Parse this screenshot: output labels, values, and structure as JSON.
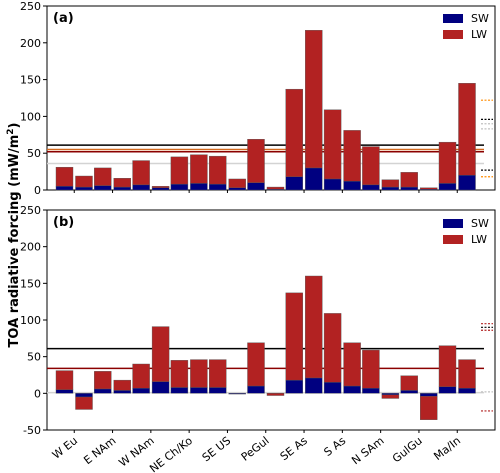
{
  "figure": {
    "ylabel": "TOA radiative forcing (mW/m²)",
    "ylabel_base": "TOA radiative forcing (mW/m",
    "ylabel_sup": "2",
    "ylabel_end": ")"
  },
  "chart_data": [
    {
      "type": "bar",
      "stacked": true,
      "panel_label": "(a)",
      "ylabel": "TOA radiative forcing (mW/m²)",
      "ylim": [
        0,
        250
      ],
      "yticks": [
        0,
        50,
        100,
        150,
        200,
        250
      ],
      "legend": {
        "placement": "top-right",
        "entries": [
          "SW",
          "LW"
        ]
      },
      "colors": {
        "SW": "#000080",
        "LW": "#b22222"
      },
      "categories": [
        "W Eu",
        "E NAm",
        "W NAm",
        "NE Ch/Ko",
        "SE US",
        "PeGul",
        "SE As",
        "S As",
        "N SAm",
        "GulGu",
        "Ma/In"
      ],
      "bars_per_category": 2,
      "series": [
        {
          "name": "SW",
          "values": [
            [
              5,
              4
            ],
            [
              6,
              4
            ],
            [
              7,
              3
            ],
            [
              8,
              9
            ],
            [
              8,
              3
            ],
            [
              10,
              1
            ],
            [
              18,
              30
            ],
            [
              15,
              12
            ],
            [
              7,
              4
            ],
            [
              4,
              1
            ],
            [
              9,
              20
            ]
          ]
        },
        {
          "name": "LW",
          "values": [
            [
              26,
              15
            ],
            [
              24,
              12
            ],
            [
              33,
              2
            ],
            [
              37,
              39
            ],
            [
              38,
              12
            ],
            [
              59,
              3
            ],
            [
              119,
              187
            ],
            [
              94,
              69
            ],
            [
              52,
              10
            ],
            [
              20,
              2
            ],
            [
              56,
              125
            ]
          ]
        }
      ],
      "reference_lines": [
        {
          "y": 61,
          "color": "#000000"
        },
        {
          "y": 55,
          "color": "#d2691e"
        },
        {
          "y": 52,
          "color": "#8b0000"
        },
        {
          "y": 36,
          "color": "#d3d3d3"
        }
      ],
      "side_marks": [
        {
          "y": 122,
          "color": "#ff8c00"
        },
        {
          "y": 96,
          "color": "#000000"
        },
        {
          "y": 90,
          "color": "#c0c0c0"
        },
        {
          "y": 83,
          "color": "#c0c0c0"
        },
        {
          "y": 27,
          "color": "#000000"
        },
        {
          "y": 18,
          "color": "#ff8c00"
        }
      ]
    },
    {
      "type": "bar",
      "stacked": true,
      "panel_label": "(b)",
      "ylabel": "TOA radiative forcing (mW/m²)",
      "ylim": [
        -50,
        250
      ],
      "yticks": [
        -50,
        0,
        50,
        100,
        150,
        200,
        250
      ],
      "legend": {
        "placement": "top-right",
        "entries": [
          "SW",
          "LW"
        ]
      },
      "colors": {
        "SW": "#000080",
        "LW": "#b22222"
      },
      "categories": [
        "W Eu",
        "E NAm",
        "W NAm",
        "NE Ch/Ko",
        "SE US",
        "PeGul",
        "SE As",
        "S As",
        "N SAm",
        "GulGu",
        "Ma/In"
      ],
      "bars_per_category": 2,
      "series": [
        {
          "name": "SW",
          "values": [
            [
              5,
              -5
            ],
            [
              6,
              4
            ],
            [
              7,
              16
            ],
            [
              8,
              8
            ],
            [
              8,
              -1
            ],
            [
              10,
              0
            ],
            [
              18,
              21
            ],
            [
              15,
              10
            ],
            [
              7,
              -2
            ],
            [
              4,
              -4
            ],
            [
              9,
              7
            ]
          ]
        },
        {
          "name": "LW",
          "values": [
            [
              26,
              -17
            ],
            [
              24,
              14
            ],
            [
              33,
              75
            ],
            [
              37,
              38
            ],
            [
              38,
              0
            ],
            [
              59,
              -3
            ],
            [
              119,
              139
            ],
            [
              94,
              59
            ],
            [
              52,
              -5
            ],
            [
              20,
              -32
            ],
            [
              56,
              39
            ]
          ]
        }
      ],
      "reference_lines": [
        {
          "y": 61,
          "color": "#000000"
        },
        {
          "y": 34,
          "color": "#8b0000"
        },
        {
          "y": 1,
          "color": "#d3d3d3"
        }
      ],
      "side_marks": [
        {
          "y": 95,
          "color": "#b22222"
        },
        {
          "y": 90,
          "color": "#000000"
        },
        {
          "y": 86,
          "color": "#b22222"
        },
        {
          "y": 2,
          "color": "#c0c0c0"
        },
        {
          "y": -24,
          "color": "#b22222"
        }
      ]
    }
  ]
}
